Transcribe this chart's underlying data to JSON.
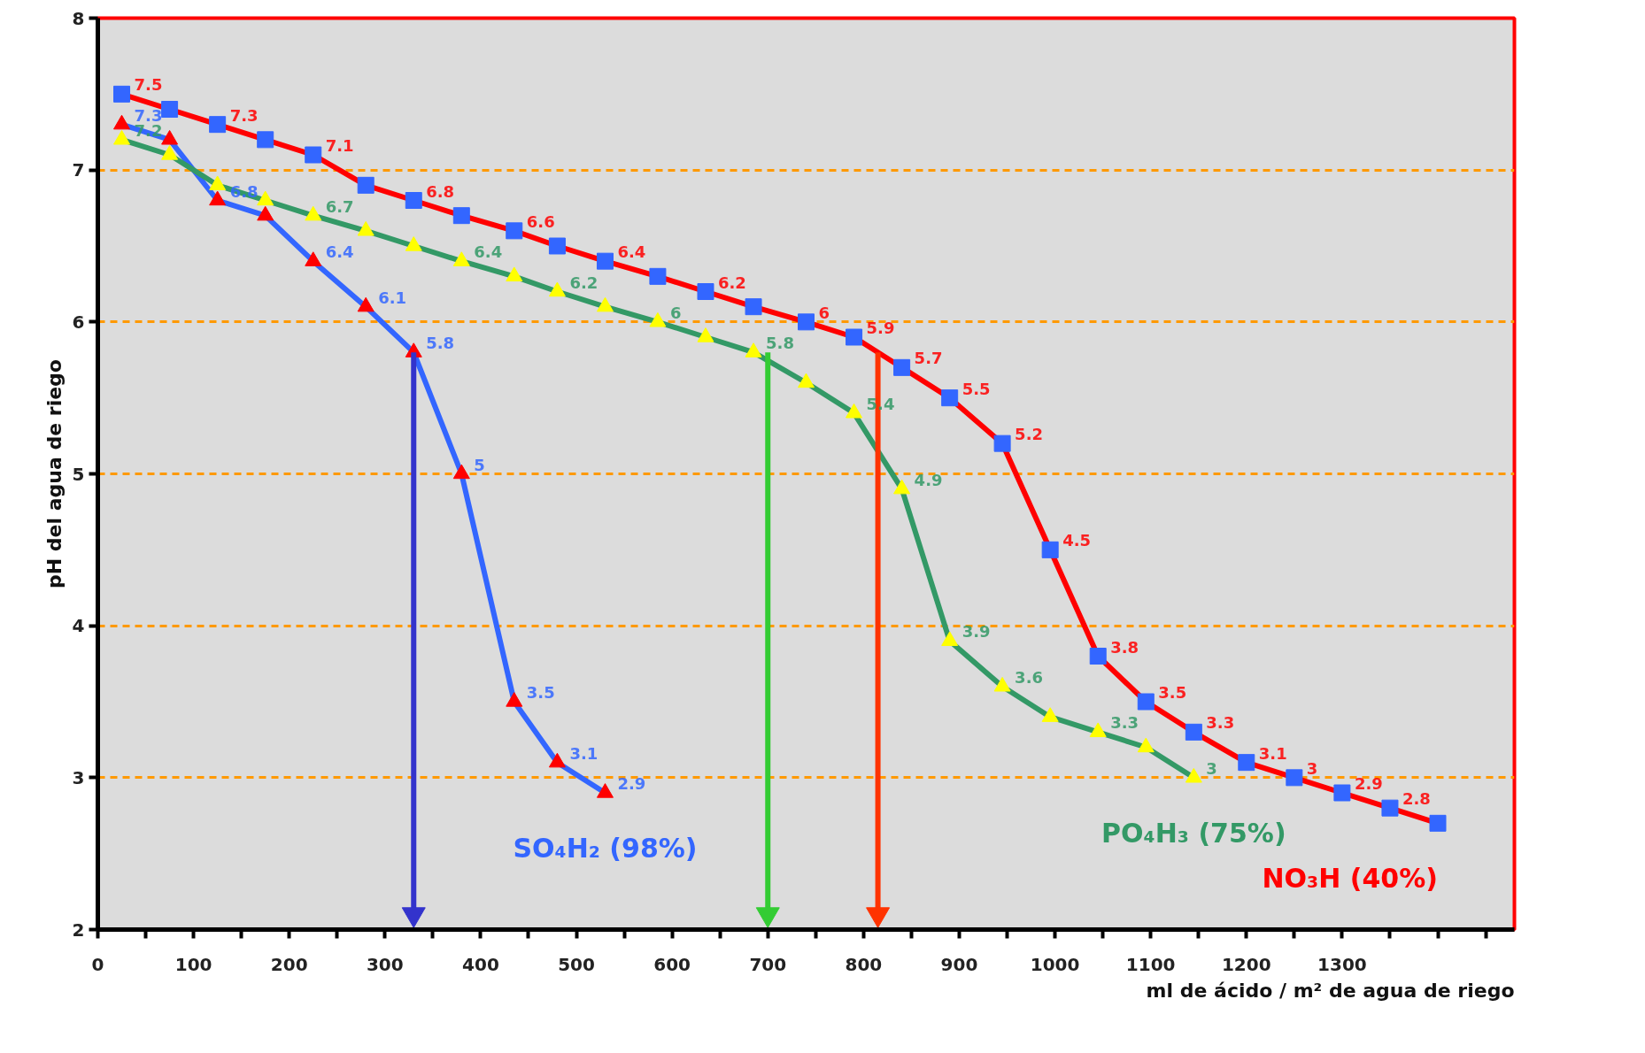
{
  "chart_data": {
    "type": "line",
    "xlabel": "ml de ácido / m² de agua de riego",
    "ylabel": "pH del agua de riego",
    "xlim": [
      0,
      1480
    ],
    "xticks": [
      0,
      {
        "value": 50,
        "label": null
      },
      100,
      {
        "value": 150,
        "label": null
      },
      200,
      {
        "value": 250,
        "label": null
      },
      300,
      {
        "value": 350,
        "label": null
      },
      400,
      {
        "value": 450,
        "label": null
      },
      500,
      {
        "value": 550,
        "label": null
      },
      600,
      {
        "value": 650,
        "label": null
      },
      700,
      {
        "value": 750,
        "label": null
      },
      800,
      {
        "value": 850,
        "label": null
      },
      900,
      {
        "value": 950,
        "label": null
      },
      1000,
      {
        "value": 1050,
        "label": null
      },
      1100,
      {
        "value": 1150,
        "label": null
      },
      1200,
      {
        "value": 1250,
        "label": null
      },
      1300,
      {
        "value": 1350,
        "label": null
      },
      {
        "value": 1400,
        "label": null
      },
      {
        "value": 1450,
        "label": null
      }
    ],
    "ylim": [
      2,
      8
    ],
    "yticks": [
      2,
      3,
      4,
      5,
      6,
      7,
      8
    ],
    "grid": "y",
    "series": [
      {
        "name": "SO₄H₂ (98%)",
        "color": "#3366ff",
        "marker": "triangle",
        "colors": [
          "#ff0000",
          "#ff0000",
          "#ff0000",
          "#ff0000",
          "#ff0000",
          "#ff0000",
          "#ff0000",
          "#ff0000",
          "#ff0000",
          "#ff0000",
          "#ff0000"
        ],
        "x": [
          25,
          75,
          125,
          175,
          225,
          280,
          330,
          380,
          435,
          480,
          530
        ],
        "values": [
          7.3,
          7.2,
          6.8,
          6.7,
          6.4,
          6.1,
          5.8,
          5.0,
          3.5,
          3.1,
          2.9
        ],
        "value_labels": [
          "7.3",
          null,
          "6.8",
          null,
          "6.4",
          "6.1",
          "5.8",
          "5",
          "3.5",
          "3.1",
          "2.9"
        ]
      },
      {
        "name": "NO₃H (40%)",
        "color": "#ff0000",
        "marker": "square",
        "colors": [
          "#3366ff",
          "#3366ff",
          "#3366ff",
          "#3366ff",
          "#3366ff",
          "#3366ff",
          "#3366ff",
          "#3366ff",
          "#3366ff",
          "#3366ff",
          "#3366ff",
          "#3366ff",
          "#3366ff",
          "#3366ff",
          "#3366ff",
          "#3366ff",
          "#3366ff",
          "#3366ff",
          "#3366ff",
          "#3366ff",
          "#3366ff",
          "#3366ff",
          "#3366ff",
          "#3366ff",
          "#3366ff",
          "#3366ff",
          "#3366ff",
          "#3366ff"
        ],
        "x": [
          25,
          75,
          125,
          175,
          225,
          280,
          330,
          380,
          435,
          480,
          530,
          585,
          635,
          685,
          740,
          790,
          840,
          890,
          945,
          995,
          1045,
          1095,
          1145,
          1200,
          1250,
          1300,
          1350,
          1400
        ],
        "values": [
          7.5,
          7.4,
          7.3,
          7.2,
          7.1,
          6.9,
          6.8,
          6.7,
          6.6,
          6.5,
          6.4,
          6.3,
          6.2,
          6.1,
          6.0,
          5.9,
          5.7,
          5.5,
          5.2,
          4.5,
          3.8,
          3.5,
          3.3,
          3.1,
          3.0,
          2.9,
          2.8,
          2.7
        ],
        "value_labels": [
          "7.5",
          null,
          "7.3",
          null,
          "7.1",
          null,
          "6.8",
          null,
          "6.6",
          null,
          "6.4",
          null,
          "6.2",
          null,
          "6",
          "5.9",
          "5.7",
          "5.5",
          "5.2",
          "4.5",
          "3.8",
          "3.5",
          "3.3",
          "3.1",
          "3",
          "2.9",
          "2.8",
          null
        ]
      },
      {
        "name": "PO₄H₃ (75%)",
        "color": "#339966",
        "marker": "triangle",
        "colors": [
          "#ffff00",
          "#ffff00",
          "#ffff00",
          "#ffff00",
          "#ffff00",
          "#ffff00",
          "#ffff00",
          "#ffff00",
          "#ffff00",
          "#ffff00",
          "#ffff00",
          "#ffff00",
          "#ffff00",
          "#ffff00",
          "#ffff00",
          "#ffff00",
          "#ffff00",
          "#ffff00",
          "#ffff00",
          "#ffff00",
          "#ffff00",
          "#ffff00",
          "#ffff00"
        ],
        "x": [
          25,
          75,
          125,
          175,
          225,
          280,
          330,
          380,
          435,
          480,
          530,
          585,
          635,
          685,
          740,
          790,
          840,
          890,
          945,
          995,
          1045,
          1095,
          1145
        ],
        "values": [
          7.2,
          7.1,
          6.9,
          6.8,
          6.7,
          6.6,
          6.5,
          6.4,
          6.3,
          6.2,
          6.1,
          6.0,
          5.9,
          5.8,
          5.6,
          5.4,
          4.9,
          3.9,
          3.6,
          3.4,
          3.3,
          3.2,
          3.0
        ],
        "value_labels": [
          "7.2",
          null,
          null,
          null,
          "6.7",
          null,
          null,
          "6.4",
          null,
          "6.2",
          null,
          "6",
          null,
          "5.8",
          null,
          "5.4",
          "4.9",
          "3.9",
          "3.6",
          null,
          "3.3",
          null,
          "3"
        ]
      },
      {
        "type": "line",
        "color": "#3333cc",
        "marker": "triangle",
        "x": [
          330,
          330
        ],
        "values": [
          5.8,
          2.1
        ]
      },
      {
        "type": "line",
        "color": "#33cc33",
        "marker": "triangle",
        "x": [
          700,
          700
        ],
        "values": [
          5.8,
          2.1
        ]
      },
      {
        "type": "line",
        "color": "#ff3300",
        "marker": "triangle",
        "x": [
          815,
          815
        ],
        "values": [
          5.8,
          2.1
        ]
      }
    ]
  }
}
